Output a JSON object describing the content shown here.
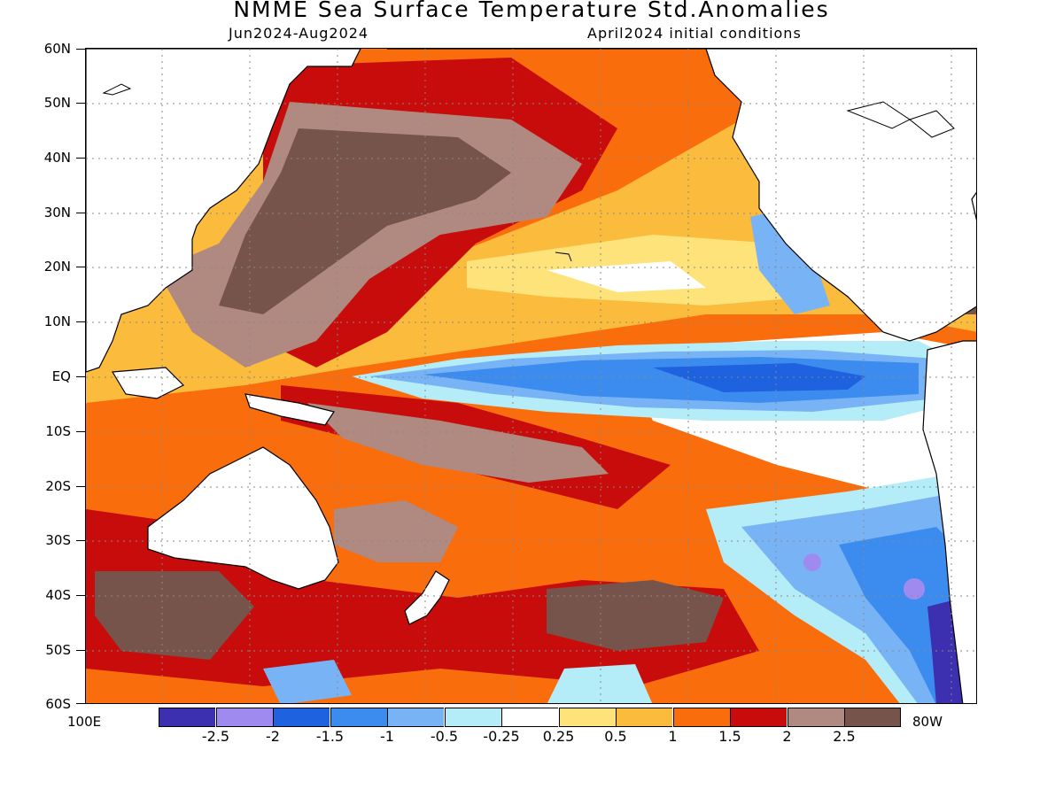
{
  "title": "NMME Sea Surface Temperature Std.Anomalies",
  "subtitle_left": "Jun2024-Aug2024",
  "subtitle_right": "April2024 initial conditions",
  "lat_labels": [
    "60N",
    "50N",
    "40N",
    "30N",
    "20N",
    "10N",
    "EQ",
    "10S",
    "20S",
    "30S",
    "40S",
    "50S",
    "60S"
  ],
  "lon_labels": {
    "left": "100E",
    "right": "80W"
  },
  "colorbar": {
    "colors": [
      "#3c2fb0",
      "#9f8bf0",
      "#1f62e0",
      "#3c8cf0",
      "#78b4f5",
      "#b4ecf8",
      "#ffffff",
      "#fee27a",
      "#fbbb3c",
      "#fa6d0d",
      "#c80b0b",
      "#b08a80",
      "#76534b"
    ],
    "labels": [
      "-2.5",
      "-2",
      "-1.5",
      "-1",
      "-0.5",
      "-0.25",
      "0.25",
      "0.5",
      "1",
      "1.5",
      "2",
      "2.5"
    ]
  },
  "map": {
    "projection": "lat-lon",
    "lon_range": [
      "100E",
      "80W"
    ],
    "lat_range": [
      "60S",
      "60N"
    ],
    "gridlines": "dotted"
  }
}
